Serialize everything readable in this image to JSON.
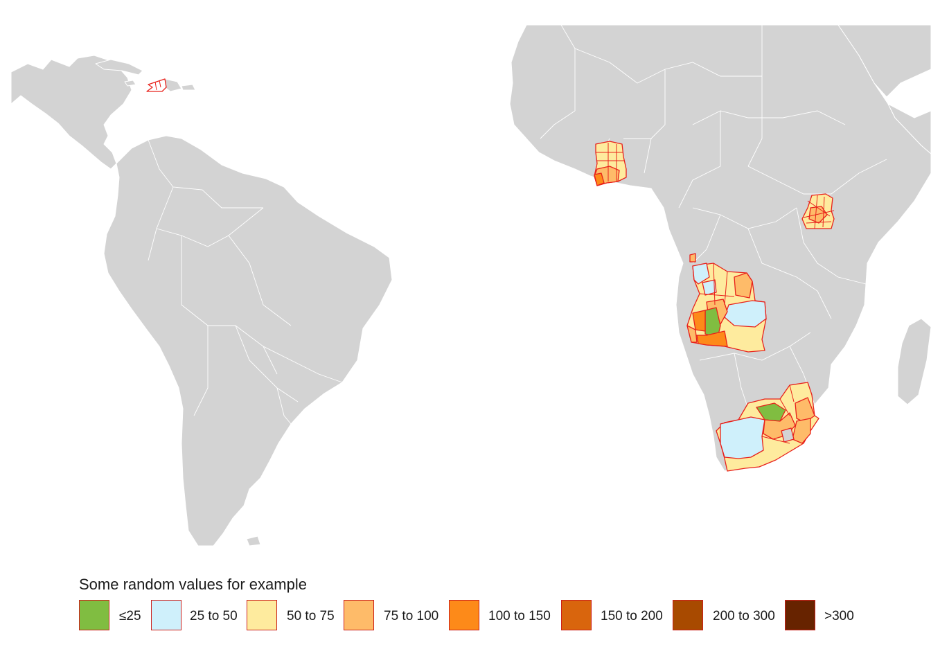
{
  "legend": {
    "title": "Some random values for example",
    "items": [
      {
        "label": "≤25",
        "color": "#80bd41"
      },
      {
        "label": "25 to 50",
        "color": "#cff0fb"
      },
      {
        "label": "50 to 75",
        "color": "#feeb9e"
      },
      {
        "label": "75 to 100",
        "color": "#febb69"
      },
      {
        "label": "100 to 150",
        "color": "#fd8a19"
      },
      {
        "label": "150 to 200",
        "color": "#d9650d"
      },
      {
        "label": "200 to 300",
        "color": "#a84a00"
      },
      {
        "label": ">300",
        "color": "#672300"
      }
    ]
  },
  "map": {
    "background_land_color": "#d3d3d3",
    "border_color": "#ffffff",
    "highlight_outline_color": "#e8201a",
    "highlighted_countries": [
      "Haiti",
      "Ghana",
      "Uganda",
      "Angola",
      "South Africa"
    ]
  }
}
